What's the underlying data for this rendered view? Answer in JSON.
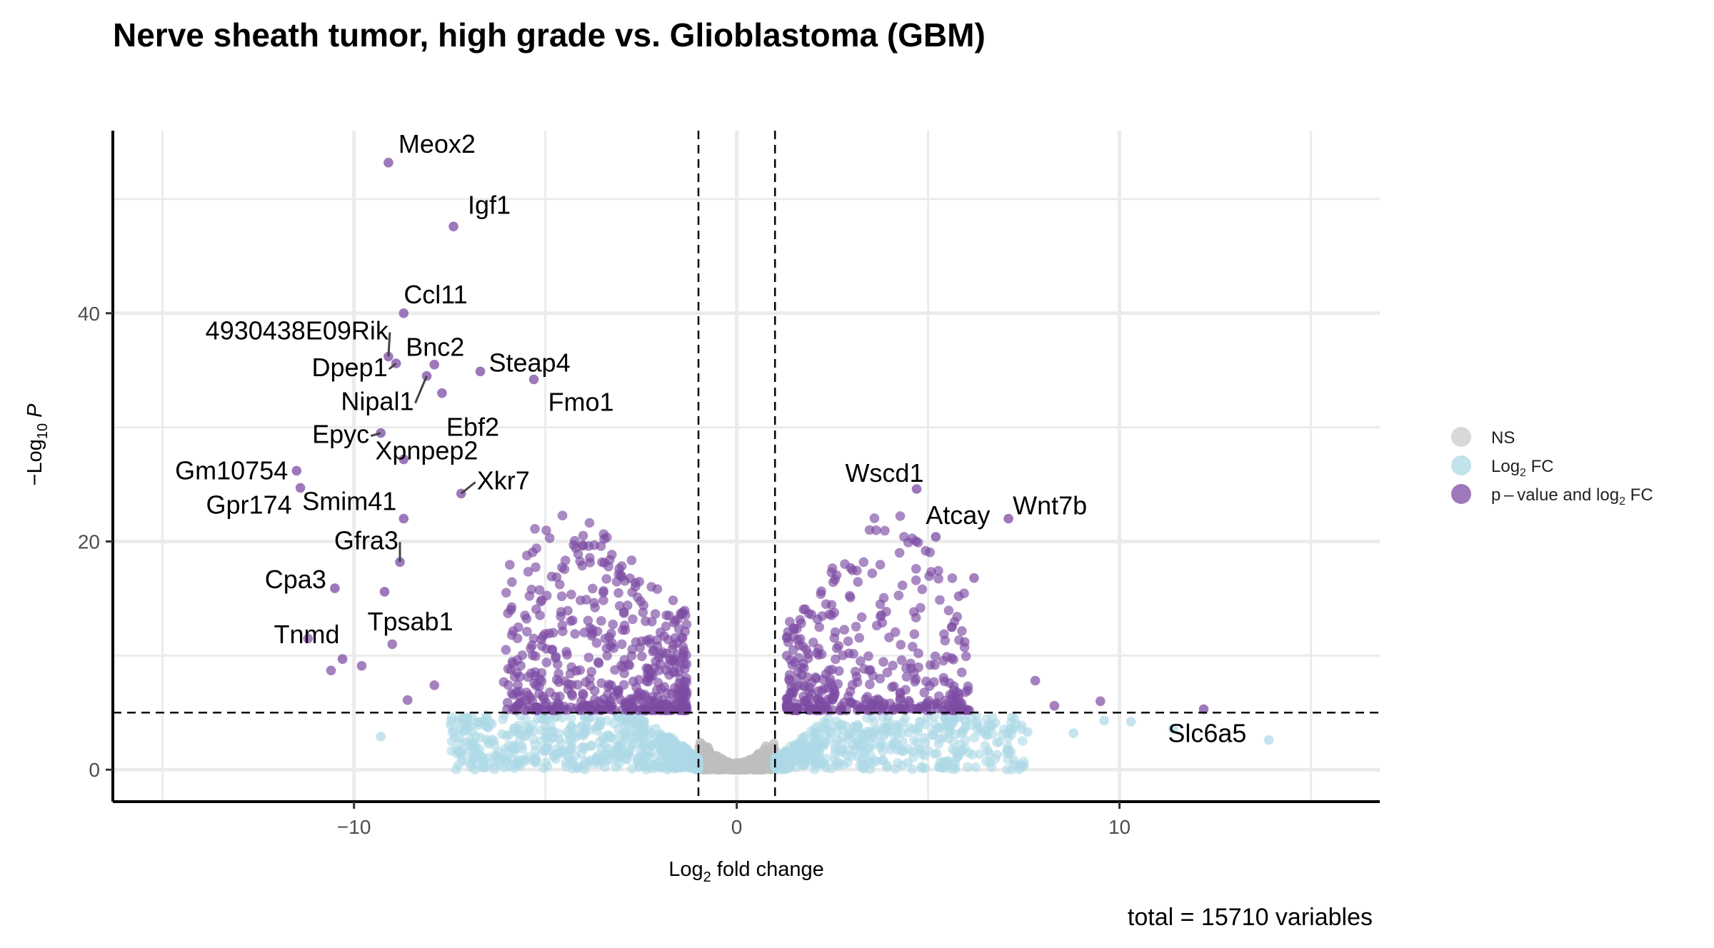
{
  "chart_data": {
    "type": "scatter",
    "title": "Nerve sheath tumor, high grade vs. Glioblastoma (GBM)",
    "xlabel": {
      "prefix": "Log",
      "sub": "2",
      "suffix": " fold change"
    },
    "ylabel": {
      "prefix": "−Log",
      "sub": "10",
      "suffix": " P"
    },
    "xlim": [
      -16.3,
      16.8
    ],
    "ylim": [
      -2.8,
      56
    ],
    "x_ticks": [
      -10,
      0,
      10
    ],
    "x_tick_labels": [
      "−10",
      "0",
      "10"
    ],
    "y_ticks": [
      0,
      20,
      40
    ],
    "y_tick_labels": [
      "0",
      "20",
      "40"
    ],
    "fc_cutoff": 1,
    "p_cutoff": 5,
    "grid": true,
    "legend_position": "right",
    "caption": "total = 15710 variables",
    "colors": {
      "ns": "#bebebe",
      "log2fc": "#add8e6",
      "both": "#7d4ba3"
    },
    "legend": [
      {
        "key": "ns",
        "label": "NS"
      },
      {
        "key": "log2fc",
        "label": "Log",
        "sub": "2",
        "suffix": " FC"
      },
      {
        "key": "both",
        "label": "p – value and log",
        "sub": "2",
        "suffix": " FC"
      }
    ],
    "labeled_genes": [
      {
        "gene": "Meox2",
        "x": -9.1,
        "y": 53.2
      },
      {
        "gene": "Igf1",
        "x": -7.4,
        "y": 47.6
      },
      {
        "gene": "Ccl11",
        "x": -8.7,
        "y": 40.0
      },
      {
        "gene": "4930438E09Rik",
        "x": -9.1,
        "y": 36.2
      },
      {
        "gene": "Bnc2",
        "x": -7.9,
        "y": 35.5
      },
      {
        "gene": "Dpep1",
        "x": -8.9,
        "y": 35.6
      },
      {
        "gene": "Steap4",
        "x": -6.7,
        "y": 34.9
      },
      {
        "gene": "Fmo1",
        "x": -5.3,
        "y": 34.2
      },
      {
        "gene": "Nipal1",
        "x": -8.1,
        "y": 34.5
      },
      {
        "gene": "Ebf2",
        "x": -7.7,
        "y": 33.0
      },
      {
        "gene": "Epyc",
        "x": -9.3,
        "y": 29.5
      },
      {
        "gene": "Xpnpep2",
        "x": -8.7,
        "y": 27.2
      },
      {
        "gene": "Xkr7",
        "x": -7.2,
        "y": 24.2
      },
      {
        "gene": "Gm10754",
        "x": -11.5,
        "y": 26.2
      },
      {
        "gene": "Gpr174",
        "x": -11.4,
        "y": 24.7
      },
      {
        "gene": "Smim41",
        "x": -8.7,
        "y": 22.0
      },
      {
        "gene": "Gfra3",
        "x": -8.8,
        "y": 18.2
      },
      {
        "gene": "Cpa3",
        "x": -10.5,
        "y": 15.9
      },
      {
        "gene": "Tpsab1",
        "x": -9.2,
        "y": 15.6
      },
      {
        "gene": "Tnmd",
        "x": -10.3,
        "y": 9.7
      },
      {
        "gene": "Wscd1",
        "x": 4.7,
        "y": 24.6
      },
      {
        "gene": "Wnt7b",
        "x": 7.1,
        "y": 22.0
      },
      {
        "gene": "Atcay",
        "x": 5.2,
        "y": 20.4
      },
      {
        "gene": "Slc6a5",
        "x": 12.2,
        "y": 5.3
      }
    ]
  }
}
